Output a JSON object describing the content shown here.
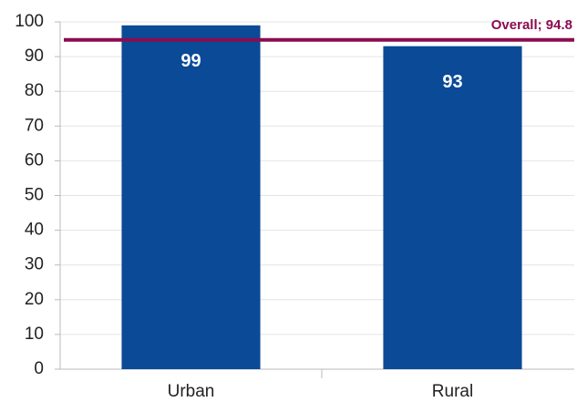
{
  "chart_data": {
    "type": "bar",
    "categories": [
      "Urban",
      "Rural"
    ],
    "values": [
      99,
      93
    ],
    "color": "#0a4a97",
    "ylim": [
      0,
      100
    ],
    "yticks": [
      0,
      10,
      20,
      30,
      40,
      50,
      60,
      70,
      80,
      90,
      100
    ],
    "grid": true,
    "reference_line": {
      "label": "Overall; 94.8",
      "value": 94.8,
      "color": "#8b0c4f"
    }
  }
}
